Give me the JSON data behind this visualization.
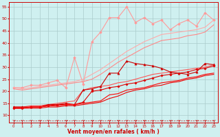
{
  "xlabel": "Vent moyen/en rafales ( km/h )",
  "background_color": "#cff0f0",
  "grid_color": "#aacccc",
  "x": [
    0,
    1,
    2,
    3,
    4,
    5,
    6,
    7,
    8,
    9,
    10,
    11,
    12,
    13,
    14,
    15,
    16,
    17,
    18,
    19,
    20,
    21,
    22,
    23
  ],
  "series": [
    {
      "color": "#ff9999",
      "marker": "D",
      "markersize": 1.8,
      "linewidth": 0.8,
      "y": [
        21.5,
        21.5,
        22.5,
        22.5,
        23.5,
        24.5,
        21.5,
        34.0,
        23.0,
        40.5,
        44.5,
        50.5,
        50.5,
        55.0,
        48.5,
        50.5,
        48.0,
        49.5,
        45.5,
        48.0,
        49.5,
        47.0,
        52.5,
        49.5
      ]
    },
    {
      "color": "#ffaaaa",
      "marker": null,
      "markersize": 0,
      "linewidth": 0.8,
      "y": [
        21.5,
        21.0,
        21.5,
        22.0,
        22.5,
        23.0,
        23.5,
        24.0,
        25.0,
        27.0,
        29.0,
        31.5,
        34.0,
        36.5,
        38.5,
        40.5,
        42.0,
        43.5,
        44.0,
        44.5,
        45.0,
        45.5,
        46.5,
        49.5
      ]
    },
    {
      "color": "#ff8888",
      "marker": null,
      "markersize": 0,
      "linewidth": 0.8,
      "y": [
        21.0,
        20.5,
        21.0,
        21.5,
        22.0,
        22.5,
        23.0,
        23.5,
        24.0,
        25.0,
        27.0,
        29.5,
        32.0,
        34.0,
        36.0,
        38.0,
        39.5,
        41.0,
        41.5,
        42.0,
        43.0,
        43.5,
        44.5,
        47.5
      ]
    },
    {
      "color": "#ff5555",
      "marker": null,
      "markersize": 0,
      "linewidth": 0.8,
      "y": [
        13.5,
        13.5,
        14.0,
        14.0,
        14.5,
        15.0,
        15.5,
        16.0,
        20.5,
        21.5,
        22.0,
        22.5,
        23.5,
        24.0,
        25.0,
        26.0,
        27.0,
        27.5,
        28.0,
        28.5,
        29.0,
        29.5,
        30.0,
        31.0
      ]
    },
    {
      "color": "#cc0000",
      "marker": "^",
      "markersize": 2.2,
      "linewidth": 0.8,
      "y": [
        13.5,
        13.5,
        13.5,
        13.5,
        14.5,
        14.5,
        14.5,
        14.5,
        20.5,
        21.0,
        22.0,
        27.5,
        27.5,
        32.5,
        31.5,
        31.0,
        30.5,
        29.5,
        28.0,
        27.5,
        27.0,
        28.0,
        31.5,
        31.0
      ]
    },
    {
      "color": "#dd0000",
      "marker": "D",
      "markersize": 1.6,
      "linewidth": 0.8,
      "y": [
        13.0,
        13.0,
        13.5,
        13.5,
        14.0,
        14.5,
        15.0,
        14.5,
        15.5,
        20.0,
        20.5,
        21.5,
        22.0,
        23.0,
        23.5,
        24.5,
        25.5,
        26.5,
        27.0,
        27.5,
        28.0,
        29.0,
        29.5,
        30.5
      ]
    },
    {
      "color": "#ff0000",
      "marker": null,
      "markersize": 0,
      "linewidth": 0.8,
      "y": [
        13.0,
        13.0,
        13.5,
        13.5,
        14.0,
        14.0,
        14.5,
        14.5,
        15.0,
        15.5,
        16.0,
        18.5,
        19.0,
        20.5,
        21.0,
        21.5,
        22.5,
        23.5,
        24.0,
        24.5,
        25.5,
        26.0,
        27.0,
        27.5
      ]
    },
    {
      "color": "#ee0000",
      "marker": null,
      "markersize": 0,
      "linewidth": 0.8,
      "y": [
        13.0,
        13.0,
        13.0,
        13.0,
        13.5,
        13.5,
        14.0,
        14.0,
        14.5,
        15.0,
        15.5,
        17.0,
        18.0,
        19.5,
        20.5,
        21.0,
        22.0,
        22.5,
        23.5,
        24.0,
        25.0,
        25.5,
        26.5,
        27.0
      ]
    },
    {
      "color": "#cc0000",
      "marker": "1",
      "markersize": 3.5,
      "linewidth": 0.5,
      "dashed": true,
      "y": [
        8.0,
        8.0,
        8.0,
        8.0,
        8.0,
        8.0,
        8.0,
        8.0,
        8.0,
        8.0,
        8.0,
        8.0,
        8.0,
        8.0,
        8.0,
        8.0,
        8.0,
        8.0,
        8.0,
        8.0,
        8.0,
        8.0,
        8.0,
        8.0
      ]
    }
  ],
  "yticks": [
    10,
    15,
    20,
    25,
    30,
    35,
    40,
    45,
    50,
    55
  ],
  "ylim": [
    7,
    57
  ],
  "xlim": [
    -0.5,
    23.5
  ],
  "xticks": [
    0,
    1,
    2,
    3,
    4,
    5,
    6,
    7,
    8,
    9,
    10,
    11,
    12,
    13,
    14,
    15,
    16,
    17,
    18,
    19,
    20,
    21,
    22,
    23
  ]
}
